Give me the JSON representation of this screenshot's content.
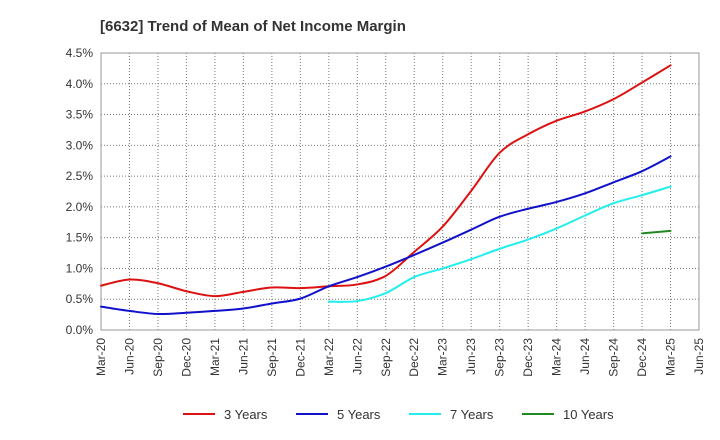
{
  "chart_data": {
    "type": "line",
    "title": "[6632]  Trend of Mean of Net Income Margin",
    "xlabel": "",
    "ylabel": "",
    "x_ticks": [
      "Mar-20",
      "Jun-20",
      "Sep-20",
      "Dec-20",
      "Mar-21",
      "Jun-21",
      "Sep-21",
      "Dec-21",
      "Mar-22",
      "Jun-22",
      "Sep-22",
      "Dec-22",
      "Mar-23",
      "Jun-23",
      "Sep-23",
      "Dec-23",
      "Mar-24",
      "Jun-24",
      "Sep-24",
      "Dec-24",
      "Mar-25",
      "Jun-25"
    ],
    "y_ticks": [
      "0.0%",
      "0.5%",
      "1.0%",
      "1.5%",
      "2.0%",
      "2.5%",
      "3.0%",
      "3.5%",
      "4.0%",
      "4.5%"
    ],
    "ylim": [
      0,
      4.5
    ],
    "grid": true,
    "legend_position": "bottom",
    "series": [
      {
        "name": "3 Years",
        "color": "#dd1111",
        "x": [
          "Mar-20",
          "Jun-20",
          "Sep-20",
          "Dec-20",
          "Mar-21",
          "Jun-21",
          "Sep-21",
          "Dec-21",
          "Mar-22",
          "Jun-22",
          "Sep-22",
          "Dec-22",
          "Mar-23",
          "Jun-23",
          "Sep-23",
          "Dec-23",
          "Mar-24",
          "Jun-24",
          "Sep-24",
          "Dec-24",
          "Mar-25"
        ],
        "values": [
          0.72,
          0.82,
          0.76,
          0.63,
          0.55,
          0.62,
          0.69,
          0.68,
          0.71,
          0.74,
          0.88,
          1.27,
          1.68,
          2.26,
          2.88,
          3.18,
          3.4,
          3.55,
          3.75,
          4.02,
          4.3
        ]
      },
      {
        "name": "5 Years",
        "color": "#1111cc",
        "x": [
          "Mar-20",
          "Jun-20",
          "Sep-20",
          "Dec-20",
          "Mar-21",
          "Jun-21",
          "Sep-21",
          "Dec-21",
          "Mar-22",
          "Jun-22",
          "Sep-22",
          "Dec-22",
          "Mar-23",
          "Jun-23",
          "Sep-23",
          "Dec-23",
          "Mar-24",
          "Jun-24",
          "Sep-24",
          "Dec-24",
          "Mar-25"
        ],
        "values": [
          0.38,
          0.31,
          0.26,
          0.28,
          0.31,
          0.35,
          0.43,
          0.51,
          0.71,
          0.86,
          1.03,
          1.22,
          1.42,
          1.63,
          1.84,
          1.97,
          2.08,
          2.22,
          2.4,
          2.58,
          2.82
        ]
      },
      {
        "name": "7 Years",
        "color": "#22eeee",
        "x": [
          "Mar-22",
          "Jun-22",
          "Sep-22",
          "Dec-22",
          "Mar-23",
          "Jun-23",
          "Sep-23",
          "Dec-23",
          "Mar-24",
          "Jun-24",
          "Sep-24",
          "Dec-24",
          "Mar-25"
        ],
        "values": [
          0.46,
          0.47,
          0.6,
          0.86,
          1.0,
          1.15,
          1.32,
          1.47,
          1.65,
          1.86,
          2.06,
          2.19,
          2.33
        ]
      },
      {
        "name": "10 Years",
        "color": "#228822",
        "x": [
          "Dec-24",
          "Mar-25"
        ],
        "values": [
          1.57,
          1.61
        ]
      }
    ]
  }
}
